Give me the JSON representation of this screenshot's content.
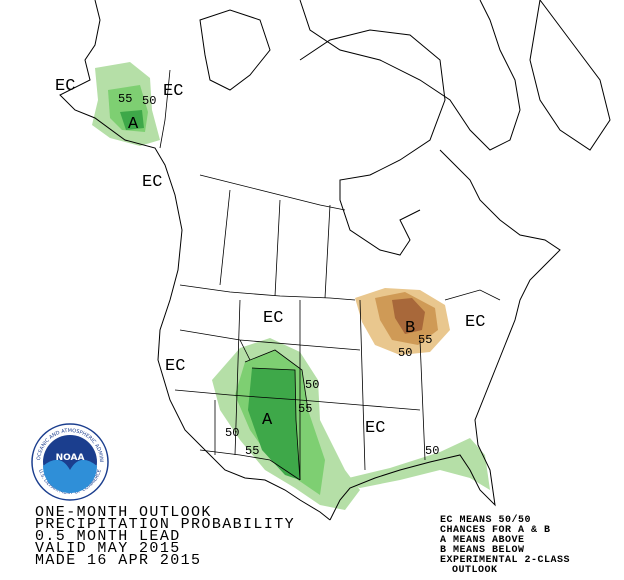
{
  "map_labels": {
    "alaska_ec": "EC",
    "alaska_55": "55",
    "alaska_50": "50",
    "alaska_east_ec": "EC",
    "alaska_a": "A",
    "bc_ec": "EC",
    "plains_ec": "EC",
    "great_lakes_b": "B",
    "great_lakes_ec": "EC",
    "west_ec": "EC",
    "southwest_a": "A",
    "south_ec": "EC",
    "contour_50_east": "50",
    "contour_55_east": "55",
    "contour_50_west": "50",
    "contour_55_west": "55",
    "contour_50_lakes": "50",
    "contour_55_lakes": "55",
    "contour_50_gulf": "50"
  },
  "logo": {
    "name": "NOAA",
    "ring_top": "NATIONAL OCEANIC AND ATMOSPHERIC ADMINISTRATION",
    "ring_bottom": "U.S. DEPARTMENT OF COMMERCE"
  },
  "title_lines": [
    "ONE-MONTH OUTLOOK",
    "PRECIPITATION PROBABILITY",
    "0.5 MONTH LEAD",
    "VALID MAY 2015",
    "MADE 16 APR 2015"
  ],
  "legend_lines": [
    "EC MEANS 50/50",
    "CHANCES FOR A & B",
    "A MEANS ABOVE",
    "B MEANS BELOW",
    "EXPERIMENTAL 2-CLASS",
    "OUTLOOK"
  ]
}
